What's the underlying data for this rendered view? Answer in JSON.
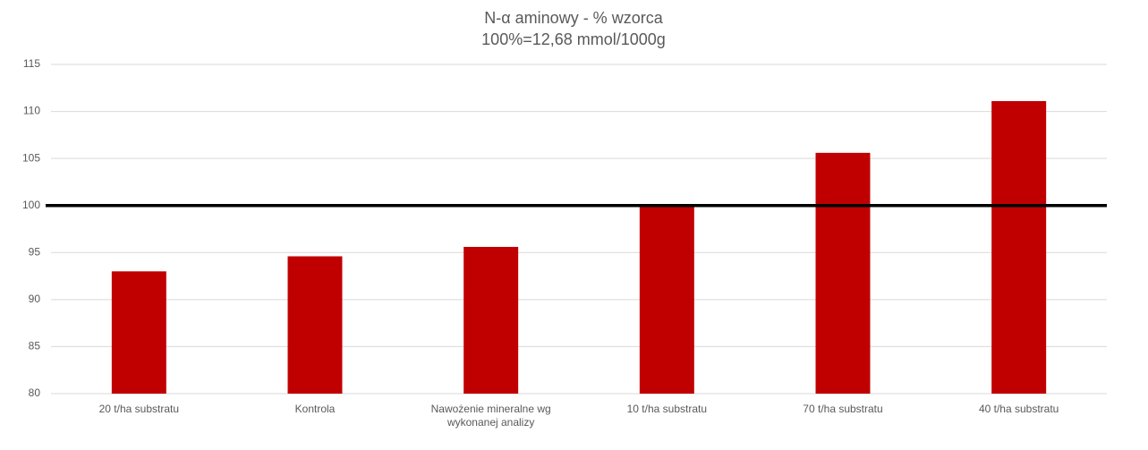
{
  "chart_data": {
    "type": "bar",
    "title": "N-α aminowy - % wzorca",
    "subtitle": "100%=12,68 mmol/1000g",
    "categories": [
      "20 t/ha substratu",
      "Kontrola",
      "Nawożenie mineralne wg wykonanej analizy",
      "10 t/ha substratu",
      "70 t/ha substratu",
      "40 t/ha substratu"
    ],
    "values": [
      93.0,
      94.6,
      95.6,
      100.0,
      105.6,
      111.1
    ],
    "color": "#c00000",
    "ylim": [
      80,
      115
    ],
    "yticks": [
      80,
      85,
      90,
      95,
      100,
      105,
      110,
      115
    ],
    "grid": true,
    "reference_line": 100,
    "reference_color": "#000000"
  }
}
